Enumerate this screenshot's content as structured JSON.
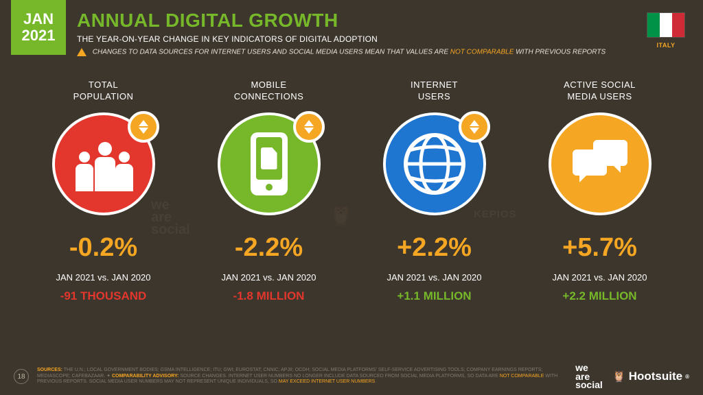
{
  "date_badge": {
    "month": "JAN",
    "year": "2021"
  },
  "header": {
    "title": "ANNUAL DIGITAL GROWTH",
    "subtitle": "THE YEAR-ON-YEAR CHANGE IN KEY INDICATORS OF DIGITAL ADOPTION",
    "warning_pre": "CHANGES TO DATA SOURCES FOR INTERNET USERS AND SOCIAL MEDIA USERS MEAN THAT VALUES ARE ",
    "warning_hl": "NOT COMPARABLE",
    "warning_post": " WITH PREVIOUS REPORTS"
  },
  "country": {
    "label": "ITALY",
    "flag_colors": [
      "#009246",
      "#ffffff",
      "#ce2b37"
    ]
  },
  "colors": {
    "background": "#3d362c",
    "accent_green": "#76b82a",
    "accent_orange": "#f5a623",
    "text": "#ffffff",
    "red": "#e3362d",
    "lime": "#76b82a",
    "blue": "#1f76d0",
    "yellow": "#f5a623"
  },
  "metrics": [
    {
      "label_l1": "TOTAL",
      "label_l2": "POPULATION",
      "circle_color": "#e3362d",
      "icon": "people",
      "has_badge": true,
      "pct": "-0.2%",
      "period": "JAN 2021 vs. JAN 2020",
      "abs": "-91 THOUSAND",
      "abs_color": "#e3362d"
    },
    {
      "label_l1": "MOBILE",
      "label_l2": "CONNECTIONS",
      "circle_color": "#76b82a",
      "icon": "phone",
      "has_badge": true,
      "pct": "-2.2%",
      "period": "JAN 2021 vs. JAN 2020",
      "abs": "-1.8 MILLION",
      "abs_color": "#e3362d"
    },
    {
      "label_l1": "INTERNET",
      "label_l2": "USERS",
      "circle_color": "#1f76d0",
      "icon": "globe",
      "has_badge": true,
      "pct": "+2.2%",
      "period": "JAN 2021 vs. JAN 2020",
      "abs": "+1.1 MILLION",
      "abs_color": "#76b82a"
    },
    {
      "label_l1": "ACTIVE SOCIAL",
      "label_l2": "MEDIA USERS",
      "circle_color": "#f5a623",
      "icon": "chat",
      "has_badge": false,
      "pct": "+5.7%",
      "period": "JAN 2021 vs. JAN 2020",
      "abs": "+2.2 MILLION",
      "abs_color": "#76b82a"
    }
  ],
  "watermarks": {
    "wearesocial": "we\nare\nsocial",
    "owl": "🦉",
    "kepios": "KEPIOS"
  },
  "footer": {
    "page": "18",
    "sources_label": "SOURCES:",
    "sources_body": " THE U.N.; LOCAL GOVERNMENT BODIES; GSMA INTELLIGENCE; ITU; GWI; EUROSTAT; CNNIC; APJII; OCDH; SOCIAL MEDIA PLATFORMS' SELF-SERVICE ADVERTISING TOOLS; COMPANY EARNINGS REPORTS; MEDIASCOPE; CAFEBAZAAR. ✦ ",
    "advisory_label": "COMPARABILITY ADVISORY:",
    "advisory_body": " SOURCE CHANGES. INTERNET USER NUMBERS NO LONGER INCLUDE DATA SOURCED FROM SOCIAL MEDIA PLATFORMS, SO DATA ARE ",
    "advisory_hl1": "NOT COMPARABLE",
    "advisory_mid": " WITH PREVIOUS REPORTS. SOCIAL MEDIA USER NUMBERS MAY NOT REPRESENT UNIQUE INDIVIDUALS, SO ",
    "advisory_hl2": "MAY EXCEED INTERNET USER NUMBERS",
    "advisory_end": ".",
    "brand_ws_l1": "we",
    "brand_ws_l2": "are",
    "brand_ws_l3": "social",
    "brand_hoot": "Hootsuite",
    "reg": "®"
  }
}
